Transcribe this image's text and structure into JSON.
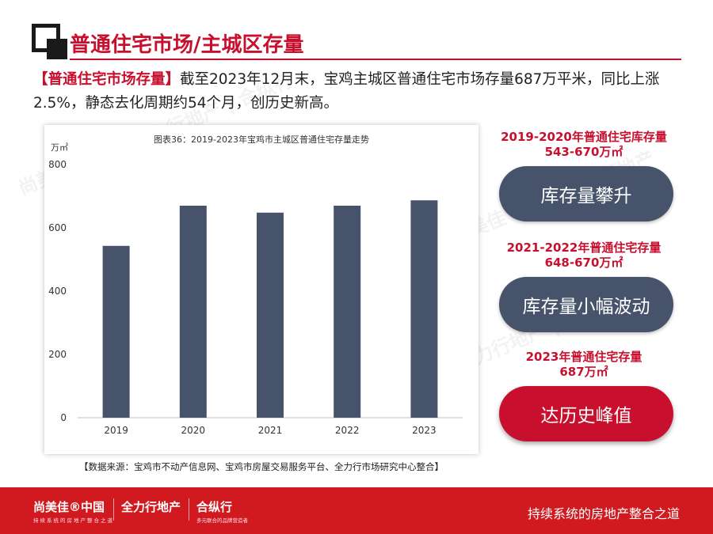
{
  "header": {
    "title": "普通住宅市场/主城区存量"
  },
  "intro": {
    "tag": "【普通住宅市场存量】",
    "text": "截至2023年12月末，宝鸡主城区普通住宅市场存量687万平米，同比上涨2.5%，静态去化周期约54个月，创历史新高。"
  },
  "chart_data": {
    "type": "bar",
    "title": "图表36：2019-2023年宝鸡市主城区普通住宅存量走势",
    "ylabel": "万㎡",
    "categories": [
      "2019",
      "2020",
      "2021",
      "2022",
      "2023"
    ],
    "values": [
      543,
      670,
      648,
      670,
      687
    ],
    "ylim": [
      0,
      800
    ],
    "yticks": [
      0,
      200,
      400,
      600,
      800
    ],
    "bar_color": "#46536a",
    "grid": false
  },
  "source": "【数据来源：宝鸡市不动产信息网、宝鸡市房屋交易服务平台、全力行市场研究中心整合】",
  "sidebar": {
    "blocks": [
      {
        "heading_line1": "2019-2020年普通住宅库存量",
        "heading_line2": "543-670万㎡",
        "pill": "库存量攀升",
        "style": "dark"
      },
      {
        "heading_line1": "2021-2022年普通住宅存量",
        "heading_line2": "648-670万㎡",
        "pill": "库存量小幅波动",
        "style": "dark"
      },
      {
        "heading_line1": "2023年普通住宅存量",
        "heading_line2": "687万㎡",
        "pill": "达历史峰值",
        "style": "red"
      }
    ]
  },
  "footer": {
    "brand1": "尚美佳®中国",
    "brand1_sub": "持续系统的房地产整合之道",
    "brand2": "全力行地产",
    "brand3": "合纵行",
    "brand3_sub": "多元联合的品牌营造者",
    "slogan": "持续系统的房地产整合之道"
  },
  "colors": {
    "accent": "#c8102e",
    "bar": "#46536a",
    "footer": "#d01a1f"
  }
}
